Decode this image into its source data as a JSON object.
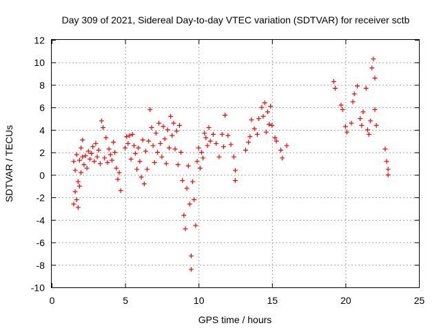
{
  "chart_data": {
    "type": "scatter",
    "title": "Day 309 of 2021, Sidereal Day-to-day VTEC variation (SDTVAR) for receiver sctb",
    "xlabel": "GPS time / hours",
    "ylabel": "SDTVAR / TECUs",
    "xlim": [
      0,
      25
    ],
    "ylim": [
      -10,
      12
    ],
    "xticks": [
      0,
      5,
      10,
      15,
      20,
      25
    ],
    "yticks": [
      -10,
      -8,
      -6,
      -4,
      -2,
      0,
      2,
      4,
      6,
      8,
      10,
      12
    ],
    "grid": true,
    "marker": "+",
    "color": "#ff0000",
    "series": [
      {
        "name": "SDTVAR",
        "points": [
          [
            1.5,
            1.2
          ],
          [
            1.5,
            -2.6
          ],
          [
            1.6,
            -1.5
          ],
          [
            1.6,
            0.4
          ],
          [
            1.7,
            -2.2
          ],
          [
            1.7,
            1.8
          ],
          [
            1.8,
            -0.6
          ],
          [
            1.8,
            -2.9
          ],
          [
            1.9,
            1.3
          ],
          [
            1.9,
            -1.0
          ],
          [
            2.0,
            0.2
          ],
          [
            2.0,
            2.4
          ],
          [
            2.1,
            1.6
          ],
          [
            2.1,
            3.1
          ],
          [
            2.2,
            0.9
          ],
          [
            2.3,
            1.7
          ],
          [
            2.4,
            0.6
          ],
          [
            2.5,
            2.1
          ],
          [
            2.6,
            1.4
          ],
          [
            2.7,
            1.9
          ],
          [
            2.8,
            2.5
          ],
          [
            2.9,
            1.2
          ],
          [
            3.0,
            2.8
          ],
          [
            3.1,
            1.6
          ],
          [
            3.2,
            2.2
          ],
          [
            3.3,
            1.0
          ],
          [
            3.4,
            4.8
          ],
          [
            3.5,
            4.2
          ],
          [
            3.6,
            1.5
          ],
          [
            3.7,
            3.3
          ],
          [
            3.8,
            1.1
          ],
          [
            3.9,
            2.3
          ],
          [
            4.0,
            1.8
          ],
          [
            4.1,
            1.3
          ],
          [
            4.2,
            2.9
          ],
          [
            4.3,
            2.0
          ],
          [
            4.4,
            0.6
          ],
          [
            4.5,
            -0.4
          ],
          [
            4.6,
            0.2
          ],
          [
            4.7,
            -1.4
          ],
          [
            5.0,
            2.4
          ],
          [
            5.1,
            3.4
          ],
          [
            5.2,
            2.8
          ],
          [
            5.3,
            3.5
          ],
          [
            5.4,
            1.4
          ],
          [
            5.5,
            3.6
          ],
          [
            5.6,
            2.6
          ],
          [
            5.7,
            1.9
          ],
          [
            5.8,
            0.5
          ],
          [
            5.9,
            2.4
          ],
          [
            6.0,
            1.2
          ],
          [
            6.1,
            -0.2
          ],
          [
            6.2,
            3.1
          ],
          [
            6.3,
            -0.8
          ],
          [
            6.4,
            2.1
          ],
          [
            6.5,
            0.5
          ],
          [
            6.6,
            3.0
          ],
          [
            6.7,
            5.8
          ],
          [
            6.8,
            4.2
          ],
          [
            6.9,
            2.6
          ],
          [
            7.0,
            1.1
          ],
          [
            7.1,
            3.7
          ],
          [
            7.2,
            2.0
          ],
          [
            7.3,
            4.6
          ],
          [
            7.4,
            2.8
          ],
          [
            7.5,
            1.6
          ],
          [
            7.6,
            4.3
          ],
          [
            7.7,
            3.2
          ],
          [
            7.8,
            1.0
          ],
          [
            7.9,
            4.0
          ],
          [
            8.0,
            2.4
          ],
          [
            8.1,
            5.2
          ],
          [
            8.2,
            3.5
          ],
          [
            8.3,
            4.6
          ],
          [
            8.4,
            2.3
          ],
          [
            8.5,
            3.9
          ],
          [
            8.6,
            0.9
          ],
          [
            8.7,
            4.4
          ],
          [
            8.8,
            2.0
          ],
          [
            8.9,
            -0.5
          ],
          [
            9.0,
            -3.6
          ],
          [
            9.1,
            -4.8
          ],
          [
            9.2,
            -1.2
          ],
          [
            9.3,
            0.8
          ],
          [
            9.4,
            -2.6
          ],
          [
            9.5,
            -7.2
          ],
          [
            9.5,
            -8.4
          ],
          [
            9.6,
            -0.6
          ],
          [
            9.7,
            -2.2
          ],
          [
            9.8,
            -4.5
          ],
          [
            9.9,
            1.2
          ],
          [
            10.0,
            2.4
          ],
          [
            10.1,
            0.6
          ],
          [
            10.2,
            2.0
          ],
          [
            10.3,
            1.5
          ],
          [
            10.4,
            3.7
          ],
          [
            10.5,
            3.3
          ],
          [
            10.6,
            2.6
          ],
          [
            10.7,
            4.2
          ],
          [
            10.8,
            3.0
          ],
          [
            11.0,
            3.6
          ],
          [
            11.2,
            2.8
          ],
          [
            11.4,
            1.6
          ],
          [
            11.6,
            3.6
          ],
          [
            11.7,
            2.5
          ],
          [
            11.8,
            5.3
          ],
          [
            12.0,
            3.5
          ],
          [
            12.2,
            2.7
          ],
          [
            12.4,
            1.6
          ],
          [
            12.5,
            0.4
          ],
          [
            12.5,
            -0.5
          ],
          [
            13.2,
            2.2
          ],
          [
            13.4,
            2.9
          ],
          [
            13.5,
            3.4
          ],
          [
            13.6,
            4.9
          ],
          [
            13.8,
            4.1
          ],
          [
            14.0,
            3.6
          ],
          [
            14.1,
            5.0
          ],
          [
            14.3,
            6.0
          ],
          [
            14.4,
            5.2
          ],
          [
            14.5,
            6.4
          ],
          [
            14.6,
            3.8
          ],
          [
            14.7,
            5.6
          ],
          [
            14.8,
            4.5
          ],
          [
            14.9,
            6.1
          ],
          [
            15.0,
            4.4
          ],
          [
            15.2,
            3.3
          ],
          [
            15.3,
            3.0
          ],
          [
            15.6,
            2.2
          ],
          [
            15.7,
            1.5
          ],
          [
            16.0,
            2.6
          ],
          [
            19.2,
            8.3
          ],
          [
            19.3,
            7.7
          ],
          [
            19.7,
            6.2
          ],
          [
            19.8,
            5.8
          ],
          [
            20.0,
            4.3
          ],
          [
            20.1,
            3.8
          ],
          [
            20.4,
            4.6
          ],
          [
            20.5,
            6.5
          ],
          [
            20.6,
            7.2
          ],
          [
            20.8,
            7.9
          ],
          [
            21.0,
            5.0
          ],
          [
            21.1,
            4.4
          ],
          [
            21.2,
            5.6
          ],
          [
            21.4,
            7.7
          ],
          [
            21.5,
            4.0
          ],
          [
            21.6,
            3.6
          ],
          [
            21.7,
            4.8
          ],
          [
            21.8,
            9.5
          ],
          [
            21.9,
            10.3
          ],
          [
            22.0,
            5.8
          ],
          [
            22.1,
            4.4
          ],
          [
            22.0,
            8.6
          ],
          [
            22.7,
            2.3
          ],
          [
            22.8,
            1.2
          ],
          [
            22.9,
            0.5
          ],
          [
            22.9,
            0.0
          ]
        ]
      }
    ]
  }
}
